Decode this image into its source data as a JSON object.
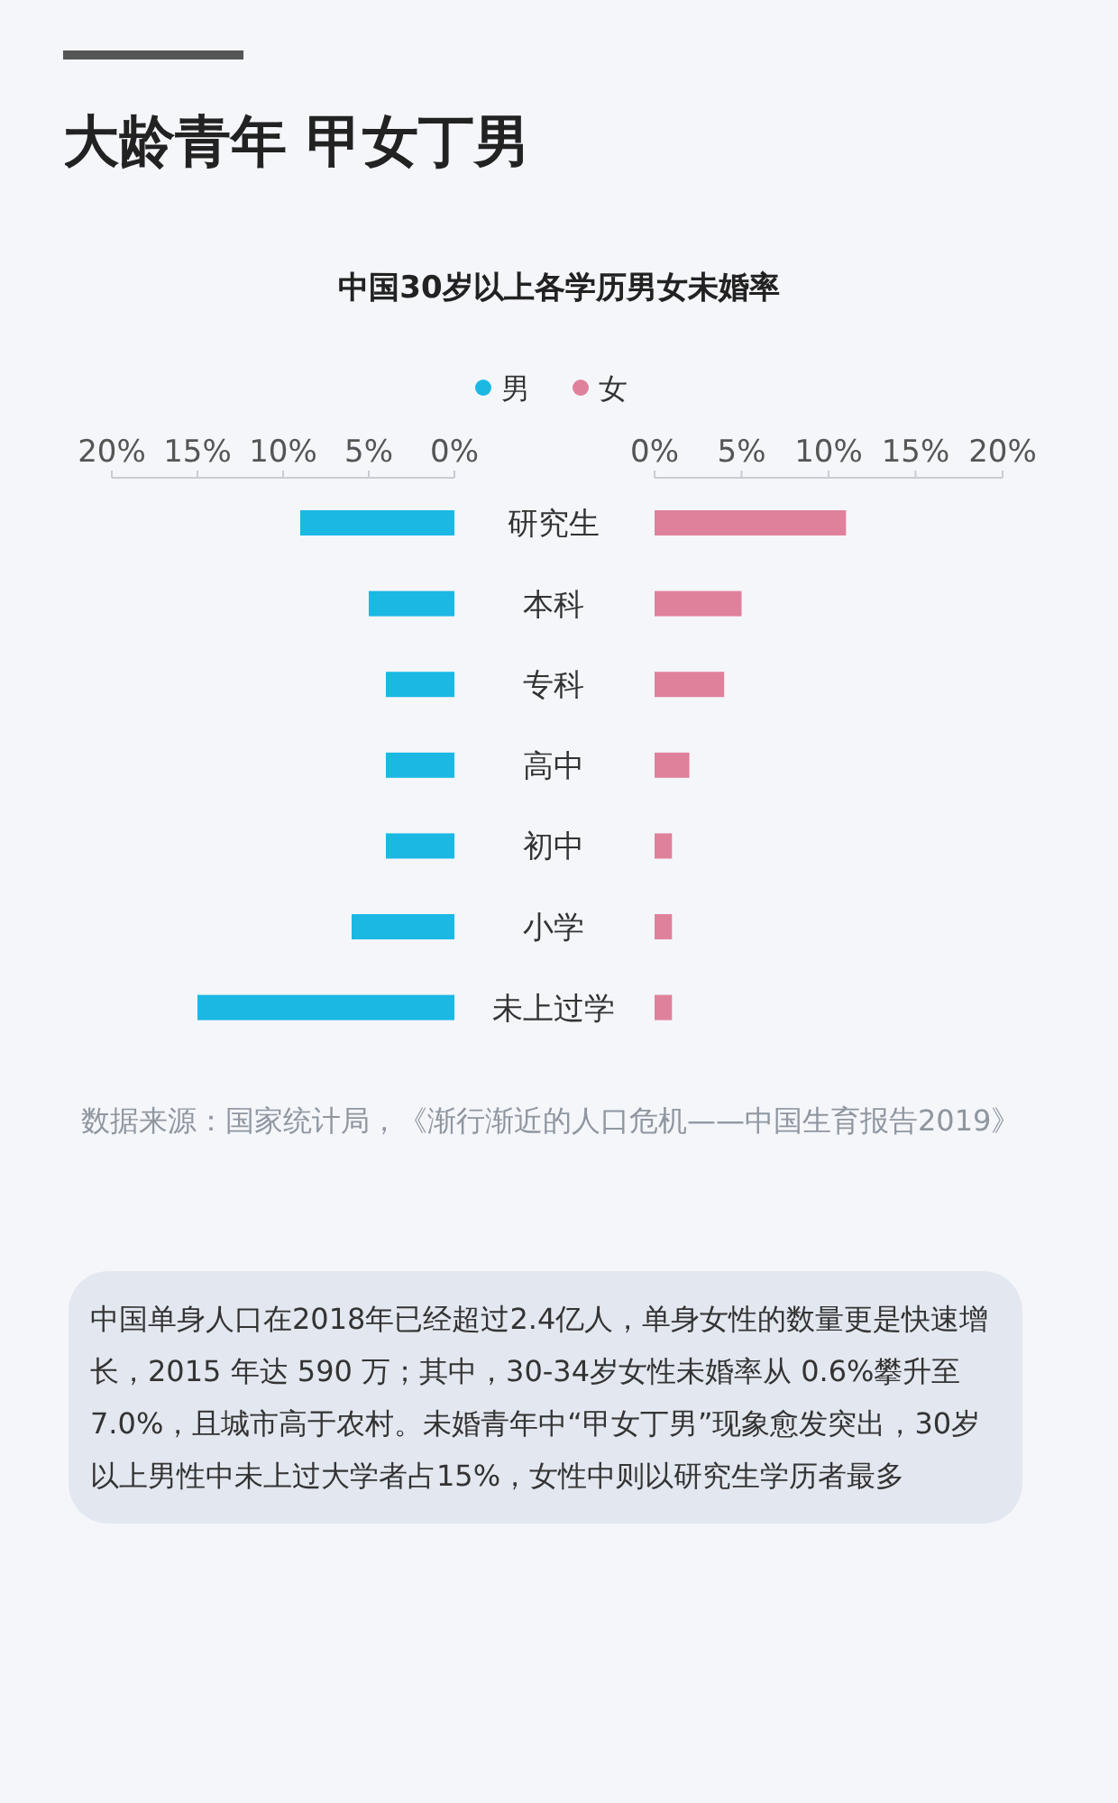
{
  "chart_data": [
    {
      "type": "bar",
      "orientation": "horizontal",
      "title": "大龄青年 甲女丁男",
      "subtitle": "中国30岁以上各学历男女未婚率",
      "categories": [
        "研究生",
        "本科",
        "专科",
        "高中",
        "初中",
        "小学",
        "未上过学"
      ],
      "series": [
        {
          "name": "男",
          "color": "#1bb8e4",
          "values": [
            9.0,
            5.0,
            4.0,
            4.0,
            4.0,
            6.0,
            15.0
          ]
        }
      ],
      "xlim": [
        20,
        0
      ],
      "xticks": [
        {
          "value": 20,
          "label": "20%"
        },
        {
          "value": 15,
          "label": "15%"
        },
        {
          "value": 10,
          "label": "10%"
        },
        {
          "value": 5,
          "label": "5%"
        },
        {
          "value": 0,
          "label": "0%"
        }
      ],
      "legend": "top",
      "grid": false,
      "annotations": [
        "数据来源：国家统计局，《渐行渐近的人口危机——中国生育报告2019》",
        "中国单身人口在2018年已经超过2.4亿人，单身女性的数量更是快速增长，2015 年达 590 万；其中，30-34岁女性未婚率从 0.6%攀升至 7.0%，且城市高于农村。未婚青年中“甲女丁男”现象愈发突出，30岁以上男性中未上过大学者占15%，女性中则以研究生学历者最多"
      ]
    },
    {
      "type": "bar",
      "orientation": "horizontal",
      "tick_labels": "x",
      "series": [
        {
          "name": "女",
          "color": "#e0819c",
          "values": [
            11.0,
            5.0,
            4.0,
            2.0,
            1.0,
            1.0,
            1.0
          ]
        }
      ],
      "xlim": [
        0,
        20
      ],
      "xticks": [
        {
          "value": 0,
          "label": "0%"
        },
        {
          "value": 5,
          "label": "5%"
        },
        {
          "value": 10,
          "label": "10%"
        },
        {
          "value": 15,
          "label": "15%"
        },
        {
          "value": 20,
          "label": "20%"
        }
      ],
      "legend": "top",
      "grid": false
    }
  ]
}
